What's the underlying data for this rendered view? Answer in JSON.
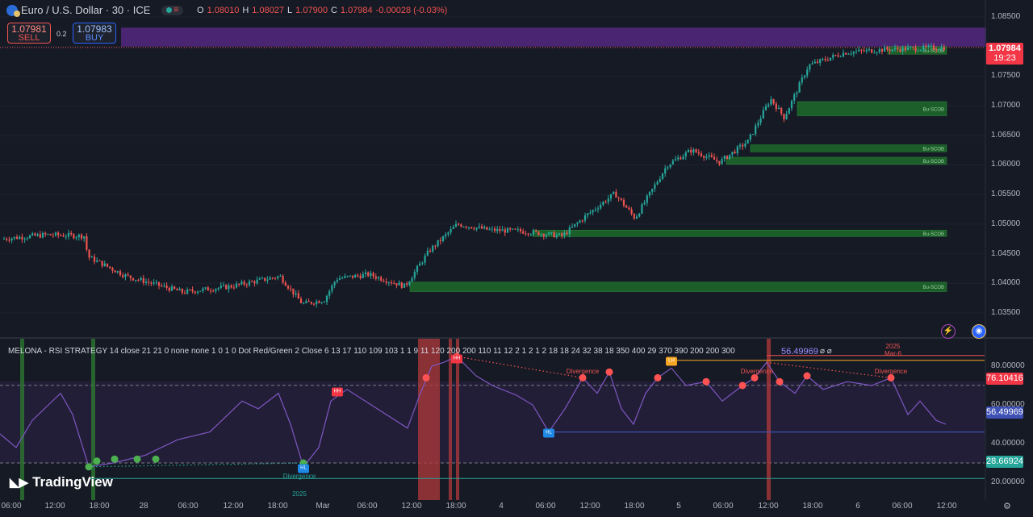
{
  "header": {
    "title": "Euro / U.S. Dollar · 30 · ICE",
    "ohlc": [
      {
        "key": "O",
        "value": "1.08010"
      },
      {
        "key": "H",
        "value": "1.08027"
      },
      {
        "key": "L",
        "value": "1.07900"
      },
      {
        "key": "C",
        "value": "1.07984"
      }
    ],
    "change": "-0.00028 (-0.03%)"
  },
  "trade": {
    "sell_price": "1.07981",
    "sell_label": "SELL",
    "spread": "0.2",
    "buy_price": "1.07983",
    "buy_label": "BUY"
  },
  "price_axis": {
    "ticks": [
      "1.08500",
      "1.08000",
      "1.07500",
      "1.07000",
      "1.06500",
      "1.06000",
      "1.05500",
      "1.05000",
      "1.04500",
      "1.04000",
      "1.03500"
    ],
    "current_price": "1.07984",
    "countdown": "19:23"
  },
  "ob_label": "Bu-SCOB",
  "indicator": {
    "title": "MELONA - RSI STRATEGY 14 close 21 21 0 none none 1 0 1 0 Dot Red/Green 2 Close 6 13 17 110 109 103 1 1 9 11 120 200 200 110 11 12 2 1 2 1 2 18 18 24 32 38 18 350 400 29 370 390 200 200 300",
    "value": "56.49969",
    "icons": "⌀ ⌀",
    "year_note": "2025",
    "date_note": "Mar-6",
    "axis_ticks": [
      "80.00000",
      "60.00000",
      "40.00000",
      "20.00000"
    ],
    "tag_upper": "76.10416",
    "tag_rsi": "56.49969",
    "tag_lower": "28.66924",
    "divergence": "Divergence",
    "year_small": "2025",
    "markers": {
      "hh": "HH",
      "hl": "HL",
      "lh": "LH"
    }
  },
  "time_axis": [
    "06:00",
    "12:00",
    "18:00",
    "28",
    "06:00",
    "12:00",
    "18:00",
    "Mar",
    "06:00",
    "12:00",
    "18:00",
    "4",
    "06:00",
    "12:00",
    "18:00",
    "5",
    "06:00",
    "12:00",
    "18:00",
    "6",
    "06:00",
    "12:00"
  ],
  "branding": "TradingView",
  "colors": {
    "bg": "#161a25",
    "up": "#26a69a",
    "down": "#ef5350",
    "rsi_line": "#7e57c2",
    "zone_purple": "#5b2a8c",
    "ob_green": "#1b5e20"
  },
  "chart_data": {
    "type": "candlestick",
    "timeframe": "30",
    "symbol": "EURUSD",
    "ylim": [
      1.032,
      1.0865
    ],
    "session_closes_approx": [
      {
        "t": "27 06:00",
        "price": 1.0475
      },
      {
        "t": "27 12:00",
        "price": 1.048
      },
      {
        "t": "27 18:00",
        "price": 1.0435
      },
      {
        "t": "28 06:00",
        "price": 1.0383
      },
      {
        "t": "28 18:00",
        "price": 1.039
      },
      {
        "t": "Mar 06:00",
        "price": 1.0405
      },
      {
        "t": "Mar 12:00",
        "price": 1.04
      },
      {
        "t": "3 12:00",
        "price": 1.048
      },
      {
        "t": "3 18:00",
        "price": 1.0488
      },
      {
        "t": "4 06:00",
        "price": 1.0483
      },
      {
        "t": "4 12:00",
        "price": 1.051
      },
      {
        "t": "4 18:00",
        "price": 1.0525
      },
      {
        "t": "5 06:00",
        "price": 1.0625
      },
      {
        "t": "5 12:00",
        "price": 1.07
      },
      {
        "t": "6 06:00",
        "price": 1.079
      },
      {
        "t": "6 12:00",
        "price": 1.07984
      }
    ],
    "rsi": {
      "value": 56.49969,
      "upper": 76.10416,
      "lower": 28.66924,
      "ylim": [
        15,
        90
      ]
    }
  }
}
